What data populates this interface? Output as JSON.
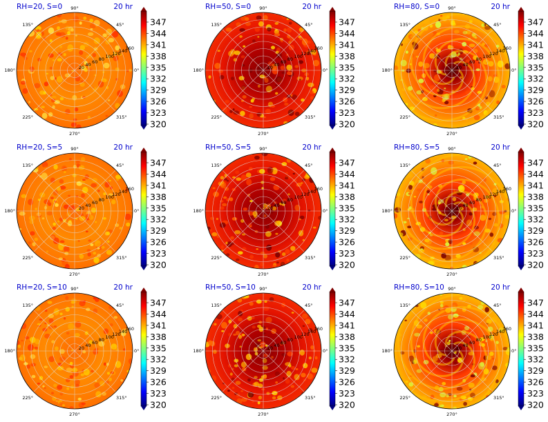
{
  "colorbar": {
    "ticks": [
      "347",
      "344",
      "341",
      "338",
      "335",
      "332",
      "329",
      "326",
      "323",
      "320"
    ],
    "min": 320,
    "max": 350,
    "colormap": "jet",
    "colors": [
      "#00007f",
      "#0000ff",
      "#007fff",
      "#00ffff",
      "#7fff7f",
      "#ffff00",
      "#ff7f00",
      "#ff0000",
      "#7f0000"
    ]
  },
  "polar_axes": {
    "angle_labels": [
      "0°",
      "45°",
      "90°",
      "135°",
      "180°",
      "225°",
      "270°",
      "315°"
    ],
    "radial_labels": [
      "20",
      "40",
      "60",
      "80",
      "100",
      "120",
      "140",
      "160"
    ]
  },
  "chart_data": [
    {
      "type": "heatmap",
      "projection": "polar",
      "title": "RH=20, S=0",
      "time_label": "20 hr",
      "rh": 20,
      "s": 0
    },
    {
      "type": "heatmap",
      "projection": "polar",
      "title": "RH=50, S=0",
      "time_label": "20 hr",
      "rh": 50,
      "s": 0
    },
    {
      "type": "heatmap",
      "projection": "polar",
      "title": "RH=80, S=0",
      "time_label": "20 hr",
      "rh": 80,
      "s": 0
    },
    {
      "type": "heatmap",
      "projection": "polar",
      "title": "RH=20, S=5",
      "time_label": "20 hr",
      "rh": 20,
      "s": 5
    },
    {
      "type": "heatmap",
      "projection": "polar",
      "title": "RH=50, S=5",
      "time_label": "20 hr",
      "rh": 50,
      "s": 5
    },
    {
      "type": "heatmap",
      "projection": "polar",
      "title": "RH=80, S=5",
      "time_label": "20 hr",
      "rh": 80,
      "s": 5
    },
    {
      "type": "heatmap",
      "projection": "polar",
      "title": "RH=20, S=10",
      "time_label": "20 hr",
      "rh": 20,
      "s": 10
    },
    {
      "type": "heatmap",
      "projection": "polar",
      "title": "RH=50, S=10",
      "time_label": "20 hr",
      "rh": 50,
      "s": 10
    },
    {
      "type": "heatmap",
      "projection": "polar",
      "title": "RH=80, S=10",
      "time_label": "20 hr",
      "rh": 80,
      "s": 10
    }
  ]
}
